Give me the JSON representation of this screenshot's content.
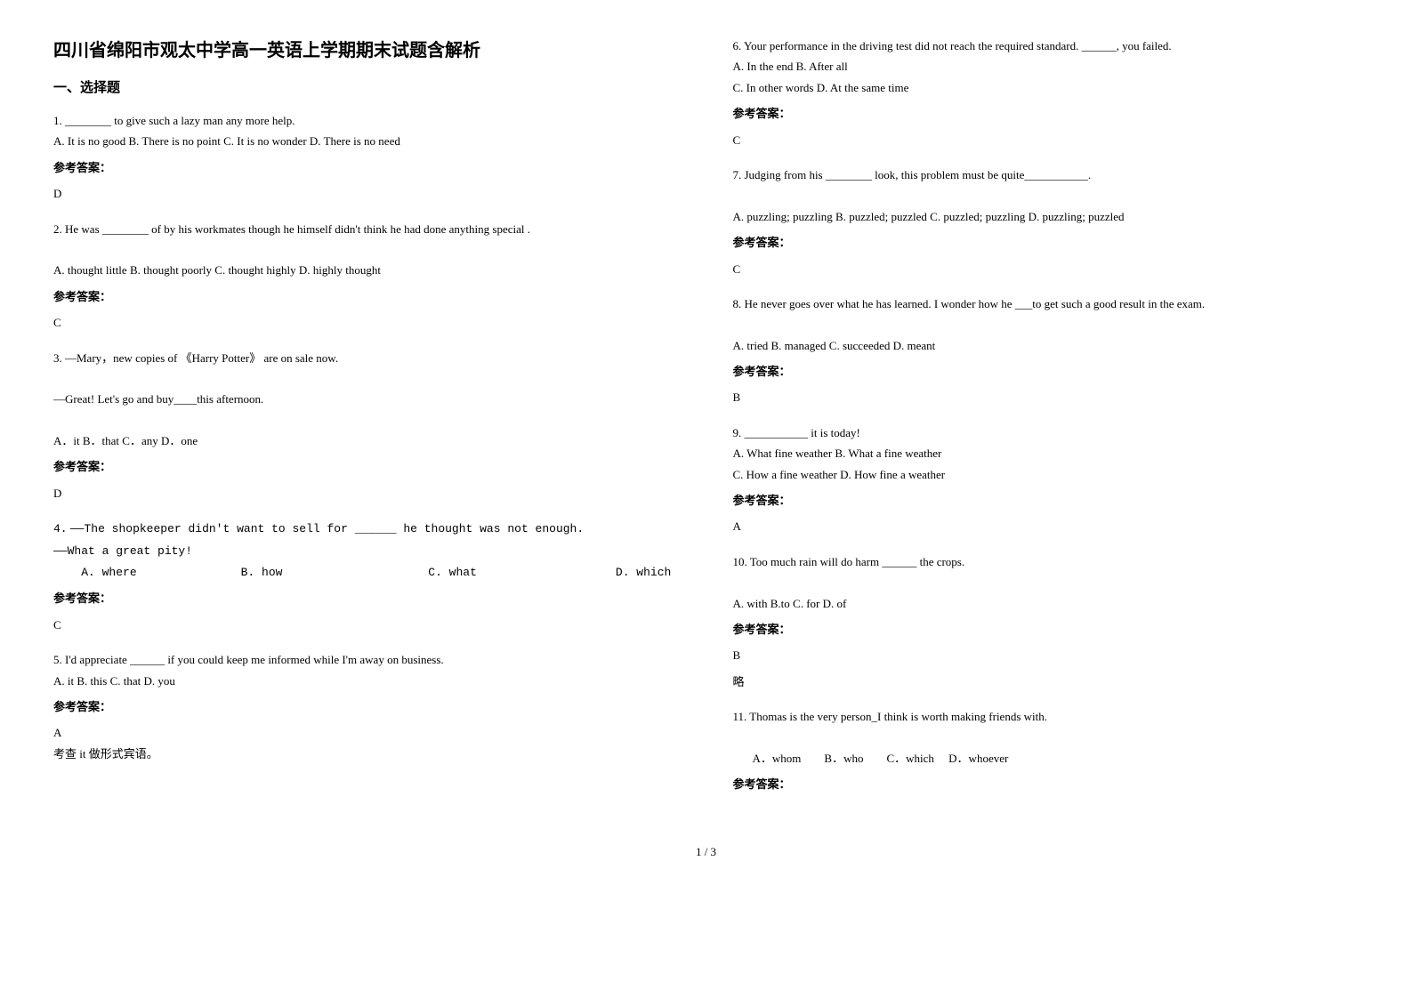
{
  "title": "四川省绵阳市观太中学高一英语上学期期末试题含解析",
  "sectionTitle": "一、选择题",
  "pageNumber": "1 / 3",
  "colors": {
    "text": "#000000",
    "background": "#ffffff"
  },
  "typography": {
    "titleFontSizePt": 20,
    "sectionFontSizePt": 15,
    "bodyFontSizePt": 13,
    "lineHeight": 1.8,
    "fontFamily": "SimSun"
  },
  "leftQuestions": [
    {
      "num": "1.",
      "text": "________ to give such a lazy man any more help.",
      "opts": "A. It is no good                  B. There is no point               C. It is no wonder                 D. There is no need",
      "ansLabel": "参考答案：",
      "ans": "D"
    },
    {
      "num": "  2.",
      "text": "He was ________ of by his workmates though he himself didn't think he had done anything special .",
      "opts": "A. thought little   B. thought poorly  C. thought highly   D. highly thought",
      "ansLabel": "参考答案：",
      "ans": "C"
    },
    {
      "num": "3.",
      "text": "—Mary，new copies of 《Harry Potter》 are on sale now.",
      "text2": "—Great! Let's go and buy____this afternoon.",
      "opts": "A．it                        B．that                 C．any                    D．one",
      "ansLabel": "参考答案：",
      "ans": "D"
    },
    {
      "num": "4.",
      "text": "——The shopkeeper didn't want to sell for ______ he thought was not enough.",
      "text2": "   ——What a great pity!",
      "opts": "    A. where               B. how                     C. what                    D. which",
      "optsMono": true,
      "ansLabel": "参考答案：",
      "ans": "C"
    },
    {
      "num": "5.",
      "text": "I'd appreciate ______ if you could keep me informed while I'm away on business.",
      "opts": "A. it       B. this      C. that    D. you",
      "ansLabel": "参考答案：",
      "ans": "A",
      "note": "考查 it 做形式宾语。"
    }
  ],
  "rightQuestions": [
    {
      "num": "6.",
      "text": "Your performance in the driving test did not reach the required standard. ______, you failed.",
      "opts": "A. In the end   B. After all",
      "opts2": "C. In other words   D. At the same time",
      "ansLabel": "参考答案：",
      "ans": "C"
    },
    {
      "num": "7.",
      "text": "Judging from his ________ look, this problem must be quite___________.",
      "opts": "A. puzzling; puzzling   B. puzzled; puzzled   C. puzzled; puzzling  D. puzzling; puzzled",
      "ansLabel": "参考答案：",
      "ans": "C"
    },
    {
      "num": " 8.",
      "text": "He never goes over what he has learned. I wonder how he ___to get such a good result in the exam.",
      "opts": "  A. tried         B. managed       C. succeeded      D. meant",
      "ansLabel": "参考答案：",
      "ans": "B"
    },
    {
      "num": "9.",
      "text": "___________ it is today!",
      "opts": "A. What fine weather                B. What a fine weather",
      "opts2": "C. How a fine weather                D. How fine a weather",
      "ansLabel": "参考答案：",
      "ans": "A"
    },
    {
      "num": "10.",
      "text": "Too much rain will do harm ______ the crops.",
      "opts": "A. with      B.to      C. for      D. of",
      "ansLabel": "参考答案：",
      "ans": "B",
      "note": "略"
    },
    {
      "num": "11.",
      "text": "Thomas is the very person_I think is worth making friends with.",
      "opts": "       A．whom        B．who        C．which     D．whoever",
      "ansLabel": "参考答案："
    }
  ]
}
